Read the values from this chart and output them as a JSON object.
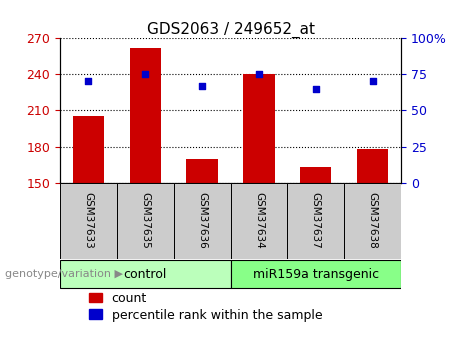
{
  "title": "GDS2063 / 249652_at",
  "samples": [
    "GSM37633",
    "GSM37635",
    "GSM37636",
    "GSM37634",
    "GSM37637",
    "GSM37638"
  ],
  "count_values": [
    205,
    262,
    170,
    240,
    163,
    178
  ],
  "percentile_values": [
    70,
    75,
    67,
    75,
    65,
    70
  ],
  "ylim_left": [
    150,
    270
  ],
  "ylim_right": [
    0,
    100
  ],
  "yticks_left": [
    150,
    180,
    210,
    240,
    270
  ],
  "yticks_right": [
    0,
    25,
    50,
    75,
    100
  ],
  "ytick_labels_right": [
    "0",
    "25",
    "50",
    "75",
    "100%"
  ],
  "bar_color": "#cc0000",
  "dot_color": "#0000cc",
  "groups": [
    {
      "label": "control",
      "color": "#bbffbb",
      "start": 0,
      "end": 3
    },
    {
      "label": "miR159a transgenic",
      "color": "#88ff88",
      "start": 3,
      "end": 6
    }
  ],
  "genotype_label": "genotype/variation",
  "legend_count": "count",
  "legend_percentile": "percentile rank within the sample",
  "bar_width": 0.55,
  "tick_label_area_color": "#cccccc",
  "title_fontsize": 11,
  "axis_fontsize": 9,
  "label_fontsize": 7.5,
  "group_fontsize": 9,
  "genotype_fontsize": 8
}
